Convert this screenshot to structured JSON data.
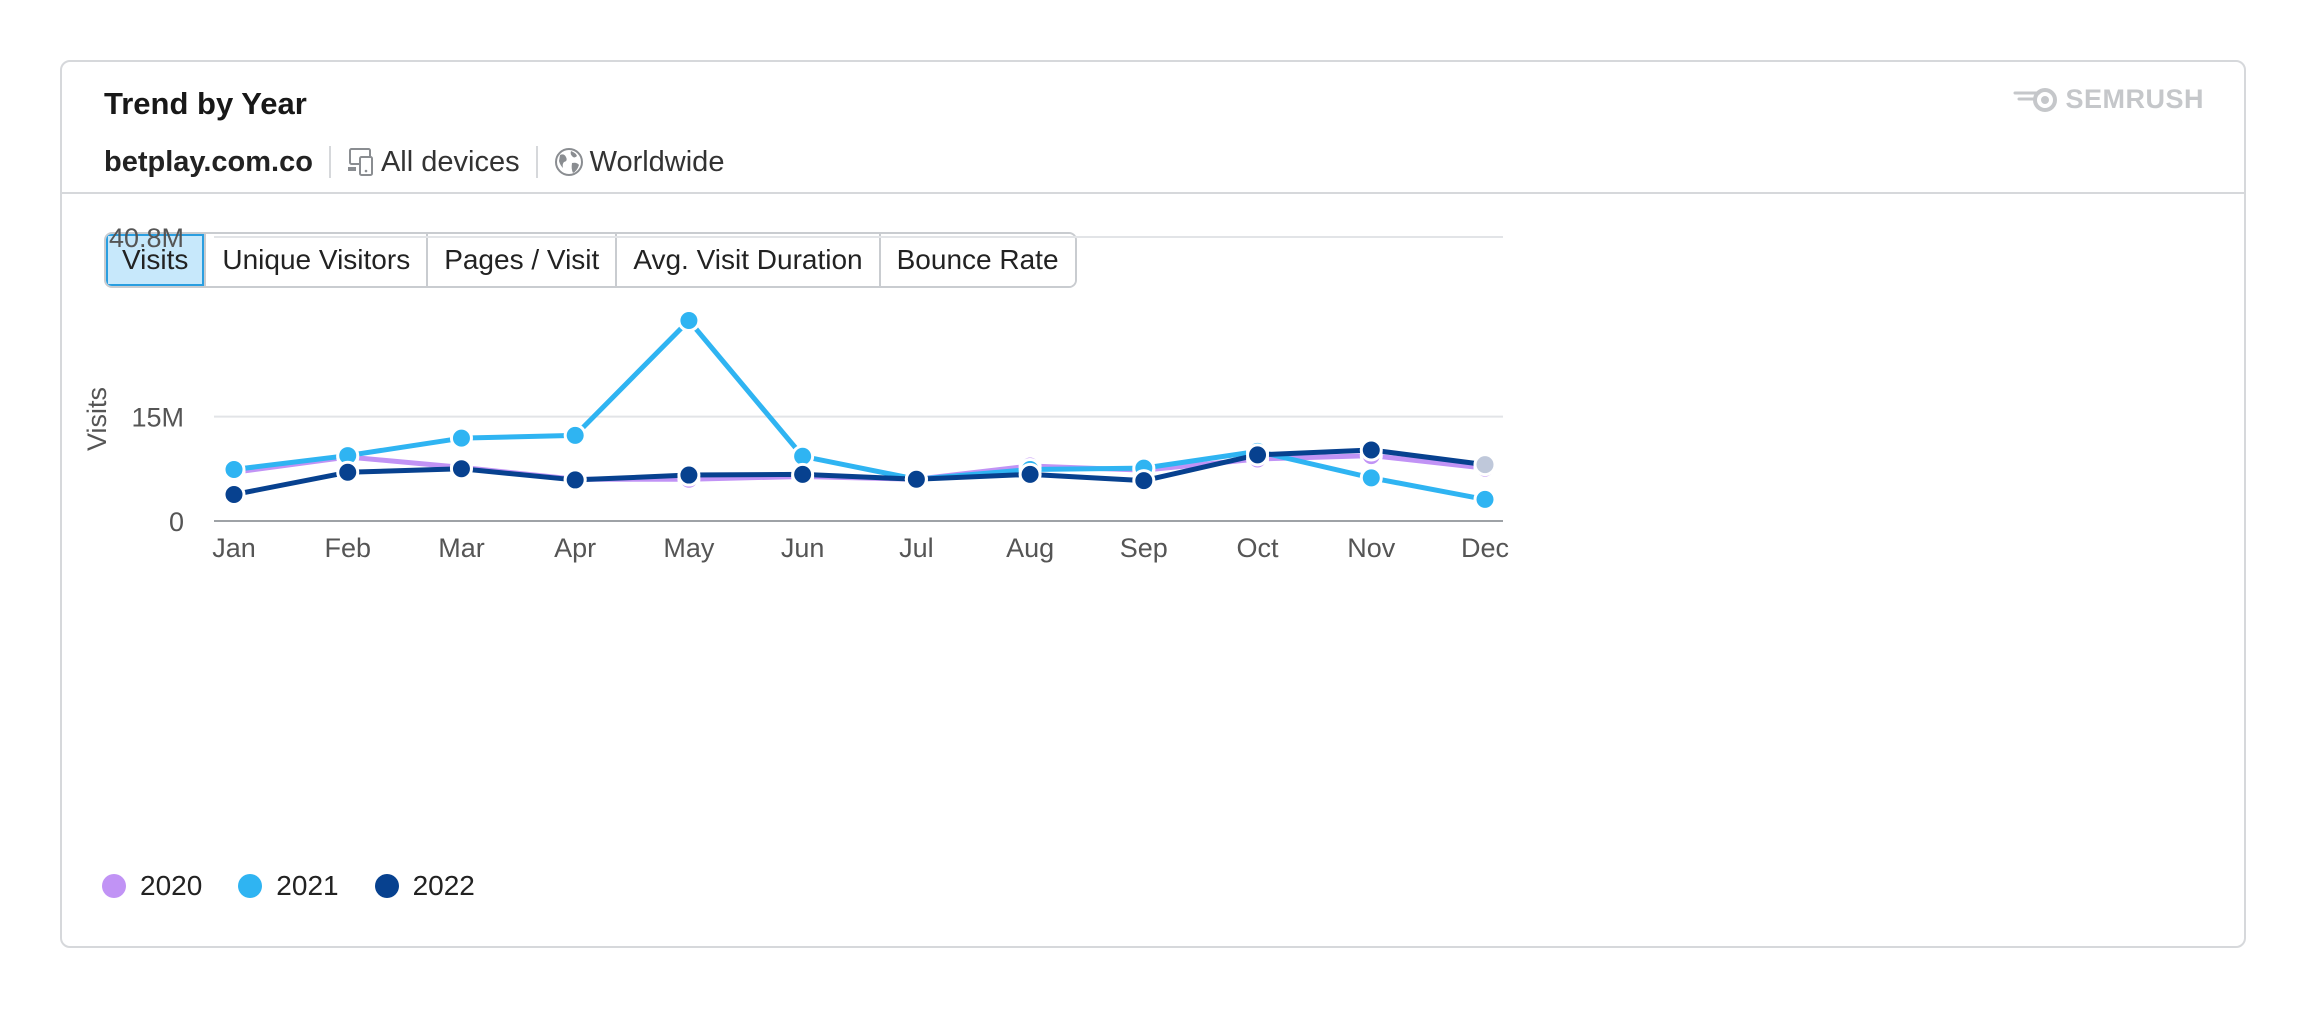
{
  "widget": {
    "title": "Trend by Year",
    "domain": "betplay.com.co",
    "devices": "All devices",
    "region": "Worldwide",
    "brand": "SEMRUSH",
    "device_icon": "devices-icon",
    "region_icon": "globe-icon",
    "brand_icon": "semrush-logo-icon"
  },
  "tabs": [
    {
      "label": "Visits",
      "active": true
    },
    {
      "label": "Unique Visitors",
      "active": false
    },
    {
      "label": "Pages / Visit",
      "active": false
    },
    {
      "label": "Avg. Visit Duration",
      "active": false
    },
    {
      "label": "Bounce Rate",
      "active": false
    }
  ],
  "chart_data": {
    "type": "line",
    "ylabel": "Visits",
    "xlabel": "",
    "categories": [
      "Jan",
      "Feb",
      "Mar",
      "Apr",
      "May",
      "Jun",
      "Jul",
      "Aug",
      "Sep",
      "Oct",
      "Nov",
      "Dec"
    ],
    "yticks": [
      {
        "value": 0,
        "label": "0"
      },
      {
        "value": 15000000,
        "label": "15M"
      },
      {
        "value": 40800000,
        "label": "40.8M"
      }
    ],
    "ylim": [
      0,
      40800000
    ],
    "grid": true,
    "legend_position": "bottom-left",
    "series": [
      {
        "name": "2020",
        "color": "#c193f5",
        "values": [
          7000000,
          9200000,
          7700000,
          6000000,
          6000000,
          6400000,
          6000000,
          7900000,
          7300000,
          8900000,
          9400000,
          7600000
        ]
      },
      {
        "name": "2021",
        "color": "#2fb4f2",
        "values": [
          7400000,
          9400000,
          11900000,
          12300000,
          28800000,
          9300000,
          6000000,
          7400000,
          7600000,
          10000000,
          6200000,
          3100000
        ]
      },
      {
        "name": "2022",
        "color": "#07418f",
        "values": [
          3800000,
          7000000,
          7500000,
          5900000,
          6600000,
          6700000,
          6000000,
          6700000,
          5800000,
          9500000,
          10200000,
          8100000
        ]
      }
    ],
    "dec_2022_marker_color": "#bfc8da"
  }
}
